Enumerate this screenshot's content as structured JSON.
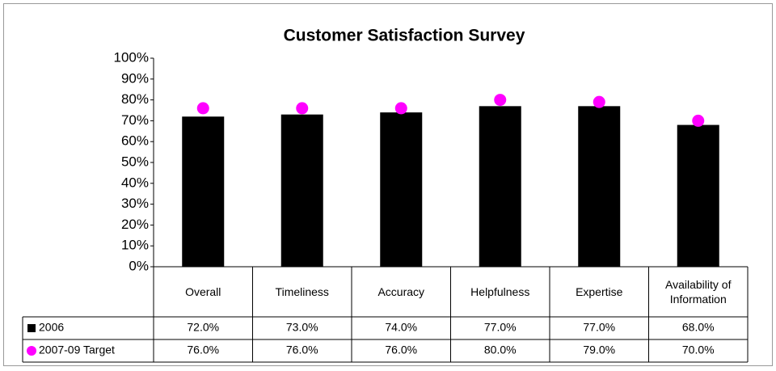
{
  "chart_data": {
    "type": "bar",
    "title": "Customer Satisfaction Survey",
    "categories": [
      "Overall",
      "Timeliness",
      "Accuracy",
      "Helpfulness",
      "Expertise",
      "Availability of Information"
    ],
    "series": [
      {
        "name": "2006",
        "type": "bar",
        "color": "#000000",
        "values": [
          72,
          73,
          74,
          77,
          77,
          68
        ],
        "value_labels": [
          "72.0%",
          "73.0%",
          "74.0%",
          "77.0%",
          "77.0%",
          "68.0%"
        ]
      },
      {
        "name": "2007-09 Target",
        "type": "dot",
        "color": "#ff00ff",
        "values": [
          76,
          76,
          76,
          80,
          79,
          70
        ],
        "value_labels": [
          "76.0%",
          "76.0%",
          "76.0%",
          "80.0%",
          "79.0%",
          "70.0%"
        ]
      }
    ],
    "ylim": [
      0,
      100
    ],
    "yticks": [
      {
        "value": 0,
        "label": "0%"
      },
      {
        "value": 10,
        "label": "10%"
      },
      {
        "value": 20,
        "label": "20%"
      },
      {
        "value": 30,
        "label": "30%"
      },
      {
        "value": 40,
        "label": "40%"
      },
      {
        "value": 50,
        "label": "50%"
      },
      {
        "value": 60,
        "label": "60%"
      },
      {
        "value": 70,
        "label": "70%"
      },
      {
        "value": 80,
        "label": "80%"
      },
      {
        "value": 90,
        "label": "90%"
      },
      {
        "value": 100,
        "label": "100%"
      }
    ],
    "grid": false,
    "data_table": true
  }
}
